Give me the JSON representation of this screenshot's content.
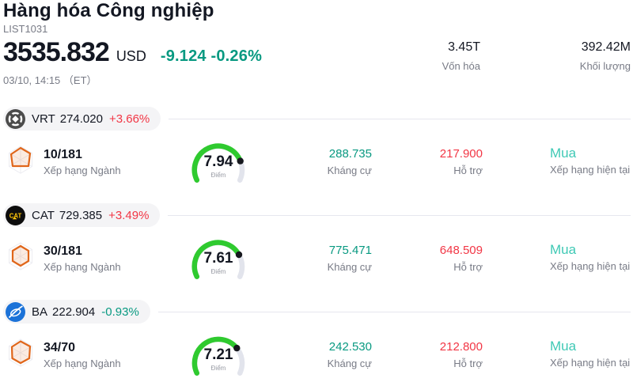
{
  "header": {
    "title": "Hàng hóa Công nghiệp",
    "symbol": "LIST1031",
    "price": "3535.832",
    "currency": "USD",
    "change": "-9.124 -0.26%",
    "change_color": "#089981",
    "datetime": "03/10, 14:15 （ET）",
    "market_cap": {
      "value": "3.45T",
      "label": "Vốn hóa"
    },
    "volume": {
      "value": "392.42M",
      "label": "Khối lượng"
    }
  },
  "colors": {
    "up": "#f23645",
    "down": "#089981",
    "buy": "#3fc9b5",
    "gauge_fill": "#2fca2f",
    "gauge_track": "#e2e4ec",
    "gauge_dot": "#16181e",
    "radar_orange": "#e0661a",
    "text_dark": "#131722",
    "text_gray": "#787b86"
  },
  "rows": [
    {
      "ticker": "VRT",
      "price": "274.020",
      "change": "+3.66%",
      "change_color": "#f23645",
      "rank": "10/181",
      "rank_label": "Xếp hạng Ngành",
      "score": 7.94,
      "score_display": "7.94",
      "score_max": 10,
      "score_label": "Điểm",
      "resistance": "288.735",
      "resistance_label": "Kháng cự",
      "resistance_color": "#089981",
      "support": "217.900",
      "support_label": "Hỗ trợ",
      "support_color": "#f23645",
      "rating": "Mua",
      "rating_label": "Xếp hạng hiện tại",
      "rating_color": "#3fc9b5"
    },
    {
      "ticker": "CAT",
      "price": "729.385",
      "change": "+3.49%",
      "change_color": "#f23645",
      "rank": "30/181",
      "rank_label": "Xếp hạng Ngành",
      "score": 7.61,
      "score_display": "7.61",
      "score_max": 10,
      "score_label": "Điểm",
      "resistance": "775.471",
      "resistance_label": "Kháng cự",
      "resistance_color": "#089981",
      "support": "648.509",
      "support_label": "Hỗ trợ",
      "support_color": "#f23645",
      "rating": "Mua",
      "rating_label": "Xếp hạng hiện tại",
      "rating_color": "#3fc9b5"
    },
    {
      "ticker": "BA",
      "price": "222.904",
      "change": "-0.93%",
      "change_color": "#089981",
      "rank": "34/70",
      "rank_label": "Xếp hạng Ngành",
      "score": 7.21,
      "score_display": "7.21",
      "score_max": 10,
      "score_label": "Điểm",
      "resistance": "242.530",
      "resistance_label": "Kháng cự",
      "resistance_color": "#089981",
      "support": "212.800",
      "support_label": "Hỗ trợ",
      "support_color": "#f23645",
      "rating": "Mua",
      "rating_label": "Xếp hạng hiện tại",
      "rating_color": "#3fc9b5"
    }
  ]
}
